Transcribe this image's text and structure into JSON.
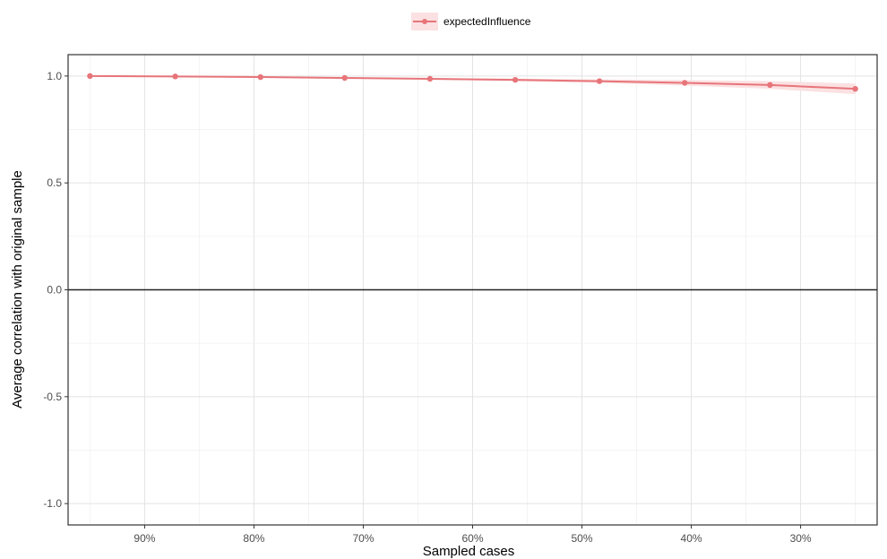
{
  "chart_data": {
    "type": "line",
    "title": "",
    "xlabel": "Sampled cases",
    "ylabel": "Average correlation with original sample",
    "x_reversed": true,
    "xlim": [
      97,
      23
    ],
    "ylim": [
      -1.1,
      1.1
    ],
    "x_ticks": [
      90,
      80,
      70,
      60,
      50,
      40,
      30
    ],
    "x_tick_labels": [
      "90%",
      "80%",
      "70%",
      "60%",
      "50%",
      "40%",
      "30%"
    ],
    "y_ticks": [
      1.0,
      0.5,
      0.0,
      -0.5,
      -1.0
    ],
    "y_tick_labels": [
      "1.0",
      "0.5",
      "0.0",
      "-0.5",
      "-1.0"
    ],
    "reference_line_y": 0,
    "grid": true,
    "legend_position": "top",
    "series": [
      {
        "name": "expectedInfluence",
        "color": "#e7757a",
        "band_color": "#fbe1e2",
        "x": [
          95,
          87.2,
          79.4,
          71.7,
          63.9,
          56.1,
          48.4,
          40.6,
          32.8,
          25
        ],
        "y": [
          1.0,
          0.998,
          0.995,
          0.991,
          0.987,
          0.982,
          0.976,
          0.968,
          0.958,
          0.94
        ],
        "lower": [
          0.999,
          0.997,
          0.993,
          0.988,
          0.983,
          0.976,
          0.968,
          0.955,
          0.94,
          0.915
        ],
        "upper": [
          1.0,
          0.999,
          0.997,
          0.994,
          0.991,
          0.988,
          0.984,
          0.981,
          0.976,
          0.965
        ]
      }
    ]
  }
}
